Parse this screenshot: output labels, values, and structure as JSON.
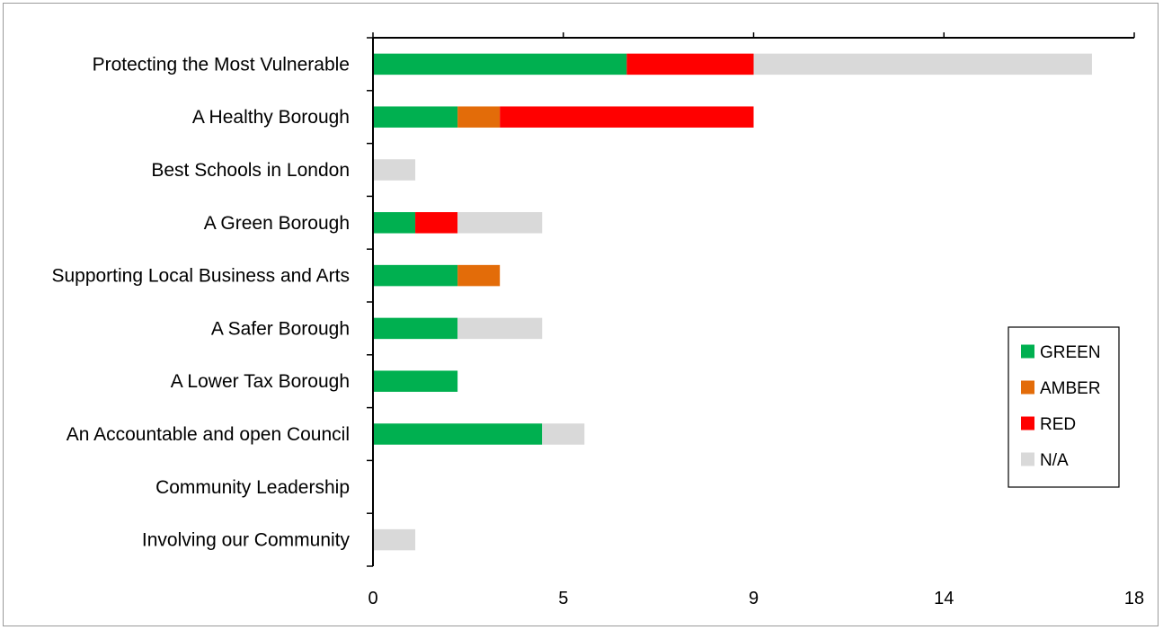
{
  "chart_data": {
    "type": "bar",
    "orientation": "horizontal",
    "stacked": true,
    "categories": [
      "Protecting the Most Vulnerable",
      "A Healthy Borough",
      "Best Schools in London",
      "A Green Borough",
      "Supporting Local Business and Arts",
      "A Safer Borough",
      "A Lower Tax Borough",
      "An Accountable and open Council",
      "Community Leadership",
      "Involving our Community"
    ],
    "series": [
      {
        "name": "GREEN",
        "color": "#00b050",
        "values": [
          6,
          2,
          0,
          1,
          2,
          2,
          2,
          4,
          0,
          0
        ]
      },
      {
        "name": "AMBER",
        "color": "#e36c09",
        "values": [
          0,
          1,
          0,
          0,
          1,
          0,
          0,
          0,
          0,
          0
        ]
      },
      {
        "name": "RED",
        "color": "#ff0000",
        "values": [
          3,
          6,
          0,
          1,
          0,
          0,
          0,
          0,
          0,
          0
        ]
      },
      {
        "name": "N/A",
        "color": "#d9d9d9",
        "values": [
          8,
          0,
          1,
          2,
          0,
          2,
          0,
          1,
          0,
          1
        ]
      }
    ],
    "xlim": [
      0,
      18
    ],
    "xticks": [
      "0",
      "5",
      "9",
      "14",
      "18"
    ],
    "legend_position": "right",
    "title": "",
    "xlabel": "",
    "ylabel": ""
  }
}
